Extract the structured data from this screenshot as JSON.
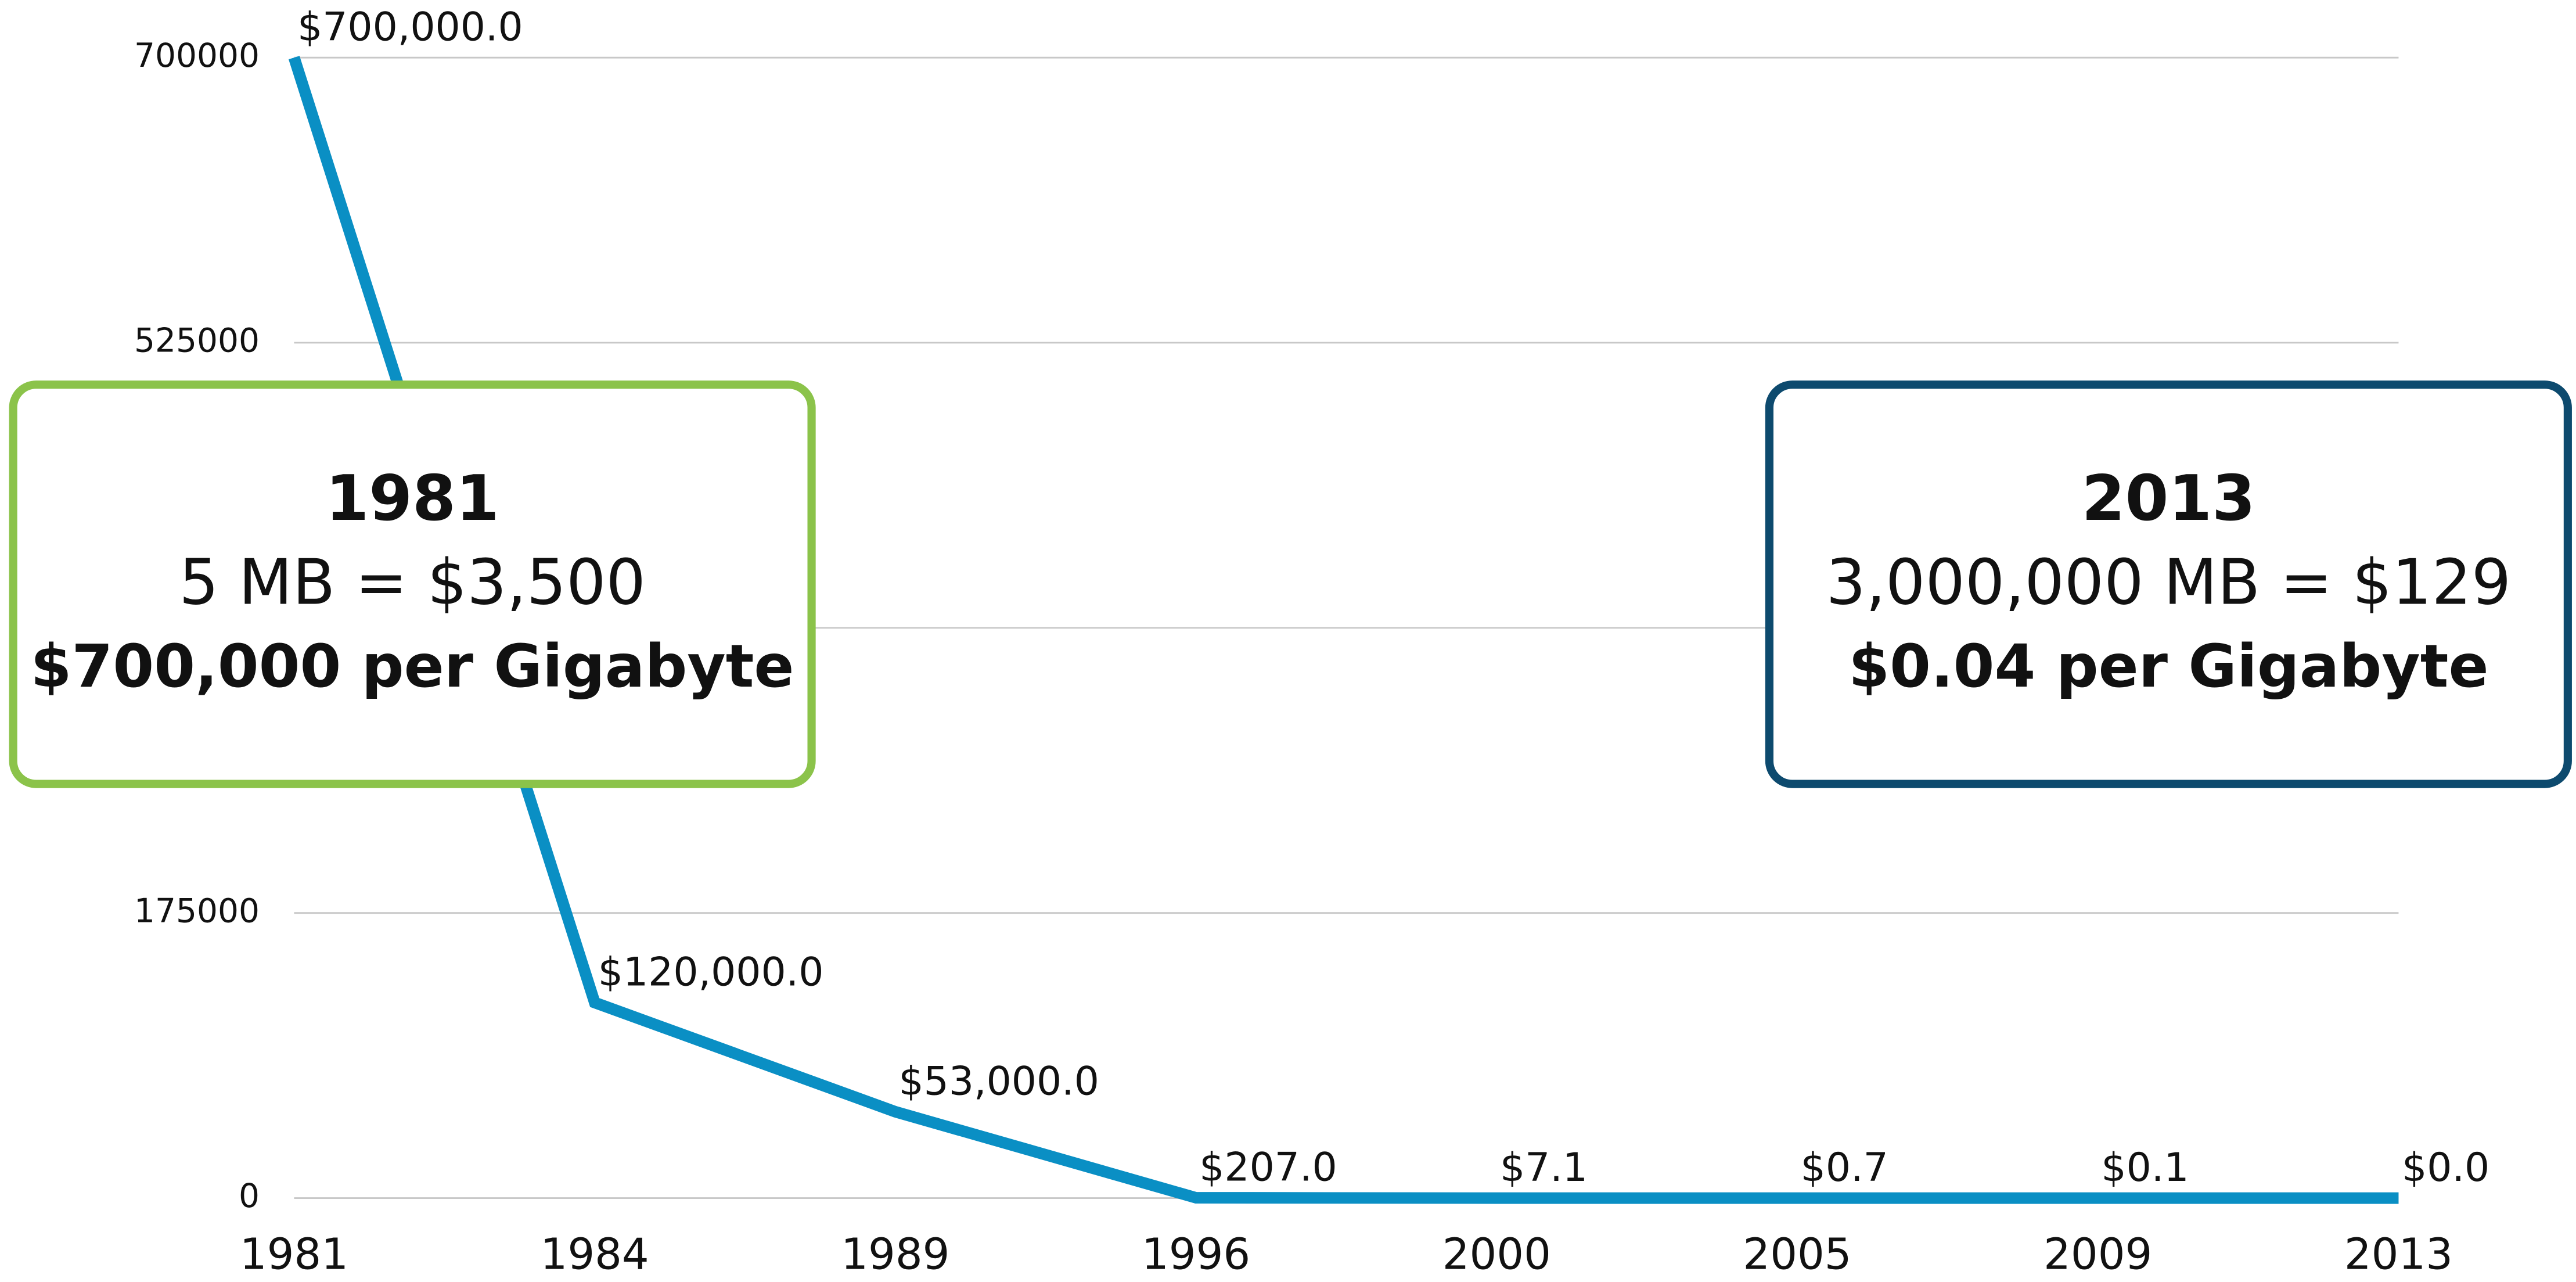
{
  "chart_data": {
    "type": "line",
    "categories": [
      "1981",
      "1984",
      "1989",
      "1996",
      "2000",
      "2005",
      "2009",
      "2013"
    ],
    "values": [
      700000,
      120000,
      53000,
      207,
      7.1,
      0.7,
      0.1,
      0.04
    ],
    "value_labels": [
      "$700,000.0",
      "$120,000.0",
      "$53,000.0",
      "$207.0",
      "$7.1",
      "$0.7",
      "$0.1",
      "$0.0"
    ],
    "color": "#0a8fc4",
    "ylim": [
      0,
      700000
    ],
    "yticks": [
      0,
      175000,
      350000,
      525000,
      700000
    ],
    "grid": true,
    "annotations": [
      {
        "title": "1981",
        "lines": [
          "5 MB = $3,500",
          "$700,000 per Gigabyte"
        ],
        "color": "#8bc34a",
        "corner": "left"
      },
      {
        "title": "2013",
        "lines": [
          "3,000,000 MB = $129",
          "$0.04 per Gigabyte"
        ],
        "color": "#0d4a6e",
        "corner": "right"
      }
    ]
  }
}
